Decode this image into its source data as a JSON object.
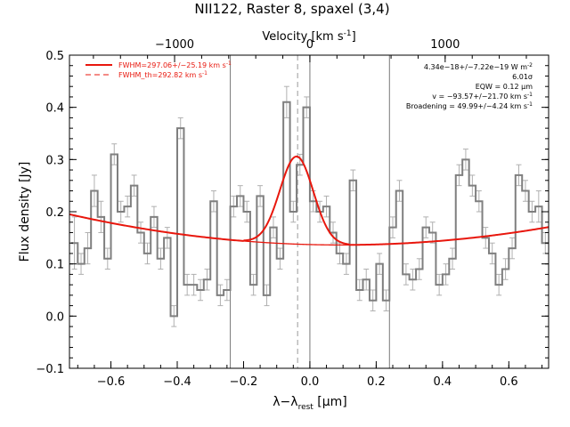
{
  "chart_data": {
    "type": "line",
    "title": "NII122, Raster 8, spaxel (3,4)",
    "xlabel": "λ−λ",
    "xlabel_sub": "rest",
    "xlabel_unit": " [μm]",
    "ylabel": "Flux density [Jy]",
    "top_axis_label": "Velocity [km s",
    "top_axis_label_sup": "-1",
    "top_axis_label_end": "]",
    "xlim": [
      -0.725,
      0.72
    ],
    "ylim": [
      -0.1,
      0.5
    ],
    "xticks": [
      -0.6,
      -0.4,
      -0.2,
      0.0,
      0.2,
      0.4,
      0.6
    ],
    "xtick_labels": [
      "−0.6",
      "−0.4",
      "−0.2",
      "0.0",
      "0.2",
      "0.4",
      "0.6"
    ],
    "yticks": [
      -0.1,
      0.0,
      0.1,
      0.2,
      0.3,
      0.4,
      0.5
    ],
    "ytick_labels": [
      "−0.1",
      "0.0",
      "0.1",
      "0.2",
      "0.3",
      "0.4",
      "0.5"
    ],
    "top_ticks_x": [
      -0.408,
      0.0,
      0.408
    ],
    "top_tick_labels": [
      "−1000",
      "0",
      "1000"
    ],
    "legend": {
      "placement": "top-left",
      "entries": [
        {
          "label": "FWHM=297.06+/−25.19 km s",
          "sup": "-1",
          "style": "solid",
          "color": "#e8170d"
        },
        {
          "label": "FWHM_th=292.82 km s",
          "sup": "-1",
          "style": "dashed",
          "color": "#e8170d"
        }
      ]
    },
    "annotations": {
      "placement": "top-right",
      "lines": [
        {
          "text": "4.34e−18+/−7.22e−19 W m",
          "sup": "-2"
        },
        {
          "text": "6.01σ",
          "sup": ""
        },
        {
          "text": "EQW = 0.12 μm",
          "sup": ""
        },
        {
          "text": "v = −93.57+/−21.70 km s",
          "sup": "-1"
        },
        {
          "text": "Broadening = 49.99+/−4.24 km s",
          "sup": "-1"
        }
      ]
    },
    "vertical_lines": [
      {
        "x": -0.24,
        "style": "solid",
        "color": "#777777"
      },
      {
        "x": -0.037,
        "style": "dashed",
        "color": "#999999"
      },
      {
        "x": 0.0,
        "style": "solid",
        "color": "#777777"
      },
      {
        "x": 0.24,
        "style": "solid",
        "color": "#777777"
      }
    ],
    "spectrum": {
      "color": "#7f7f7f",
      "error_color": "#b0b0b0",
      "x": [
        -0.71,
        -0.69,
        -0.67,
        -0.65,
        -0.63,
        -0.61,
        -0.59,
        -0.57,
        -0.55,
        -0.53,
        -0.51,
        -0.49,
        -0.47,
        -0.45,
        -0.43,
        -0.41,
        -0.39,
        -0.37,
        -0.35,
        -0.33,
        -0.31,
        -0.29,
        -0.27,
        -0.25,
        -0.23,
        -0.21,
        -0.19,
        -0.17,
        -0.15,
        -0.13,
        -0.11,
        -0.09,
        -0.07,
        -0.05,
        -0.03,
        -0.01,
        0.01,
        0.03,
        0.05,
        0.07,
        0.09,
        0.11,
        0.13,
        0.15,
        0.17,
        0.19,
        0.21,
        0.23,
        0.25,
        0.27,
        0.29,
        0.31,
        0.33,
        0.35,
        0.37,
        0.39,
        0.41,
        0.43,
        0.45,
        0.47,
        0.49,
        0.51,
        0.53,
        0.55,
        0.57,
        0.59,
        0.61,
        0.63,
        0.65,
        0.67,
        0.69,
        0.71
      ],
      "y": [
        0.14,
        0.1,
        0.13,
        0.24,
        0.19,
        0.11,
        0.31,
        0.2,
        0.21,
        0.25,
        0.16,
        0.12,
        0.19,
        0.11,
        0.15,
        0.0,
        0.36,
        0.06,
        0.06,
        0.05,
        0.07,
        0.22,
        0.04,
        0.05,
        0.21,
        0.23,
        0.2,
        0.06,
        0.23,
        0.04,
        0.17,
        0.11,
        0.41,
        0.2,
        0.29,
        0.4,
        0.22,
        0.2,
        0.21,
        0.16,
        0.12,
        0.1,
        0.26,
        0.05,
        0.07,
        0.03,
        0.1,
        0.03,
        0.17,
        0.24,
        0.08,
        0.07,
        0.09,
        0.17,
        0.16,
        0.06,
        0.08,
        0.11,
        0.27,
        0.3,
        0.25,
        0.22,
        0.15,
        0.12,
        0.06,
        0.09,
        0.13,
        0.27,
        0.24,
        0.2,
        0.21,
        0.14
      ],
      "err": [
        0.05,
        0.02,
        0.03,
        0.03,
        0.03,
        0.02,
        0.02,
        0.02,
        0.02,
        0.02,
        0.02,
        0.02,
        0.02,
        0.02,
        0.02,
        0.02,
        0.02,
        0.02,
        0.02,
        0.02,
        0.02,
        0.02,
        0.02,
        0.02,
        0.02,
        0.02,
        0.02,
        0.02,
        0.02,
        0.02,
        0.02,
        0.02,
        0.03,
        0.02,
        0.02,
        0.02,
        0.02,
        0.02,
        0.02,
        0.02,
        0.02,
        0.02,
        0.02,
        0.02,
        0.02,
        0.02,
        0.02,
        0.02,
        0.02,
        0.02,
        0.02,
        0.02,
        0.02,
        0.02,
        0.02,
        0.02,
        0.02,
        0.02,
        0.02,
        0.02,
        0.02,
        0.02,
        0.02,
        0.02,
        0.02,
        0.02,
        0.02,
        0.02,
        0.02,
        0.02,
        0.03,
        0.02
      ]
    },
    "fit": {
      "color": "#e8170d",
      "baseline_a": 0.1371,
      "baseline_b": -0.0165,
      "baseline_c": 0.0875,
      "gaussian_amp": 0.168,
      "gaussian_center": -0.04,
      "gaussian_sigma": 0.0505,
      "fit_range": [
        -0.2,
        0.12
      ]
    }
  }
}
